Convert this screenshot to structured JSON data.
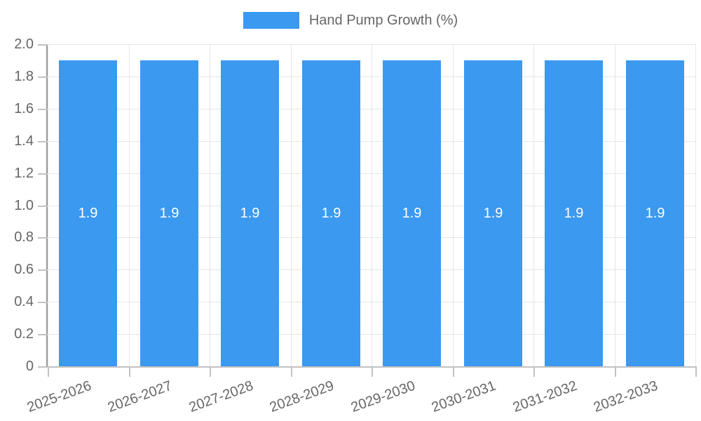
{
  "chart_data": {
    "type": "bar",
    "title": "",
    "legend_position": "top",
    "grid": true,
    "categories": [
      "2025-2026",
      "2026-2027",
      "2027-2028",
      "2028-2029",
      "2029-2030",
      "2030-2031",
      "2031-2032",
      "2032-2033"
    ],
    "series": [
      {
        "name": "Hand Pump Growth (%)",
        "values": [
          1.9,
          1.9,
          1.9,
          1.9,
          1.9,
          1.9,
          1.9,
          1.9
        ]
      }
    ],
    "value_labels": [
      "1.9",
      "1.9",
      "1.9",
      "1.9",
      "1.9",
      "1.9",
      "1.9",
      "1.9"
    ],
    "ylim": [
      0,
      2.0
    ],
    "ytick_step": 0.2,
    "ytick_labels_top_to_bottom": [
      "2.0",
      "1.8",
      "1.6",
      "1.4",
      "1.2",
      "1.0",
      "0.8",
      "0.6",
      "0.4",
      "0.2",
      "0"
    ],
    "x_label_rotation_deg": -20
  },
  "colors": {
    "bar": "#3b99f0",
    "grid_line": "#e6e6e6",
    "axis_line": "#c2c2c2",
    "y_axis_border": "#999999",
    "tick_text": "#666666",
    "legend_text": "#666666",
    "bar_value_text": "#ffffff"
  }
}
